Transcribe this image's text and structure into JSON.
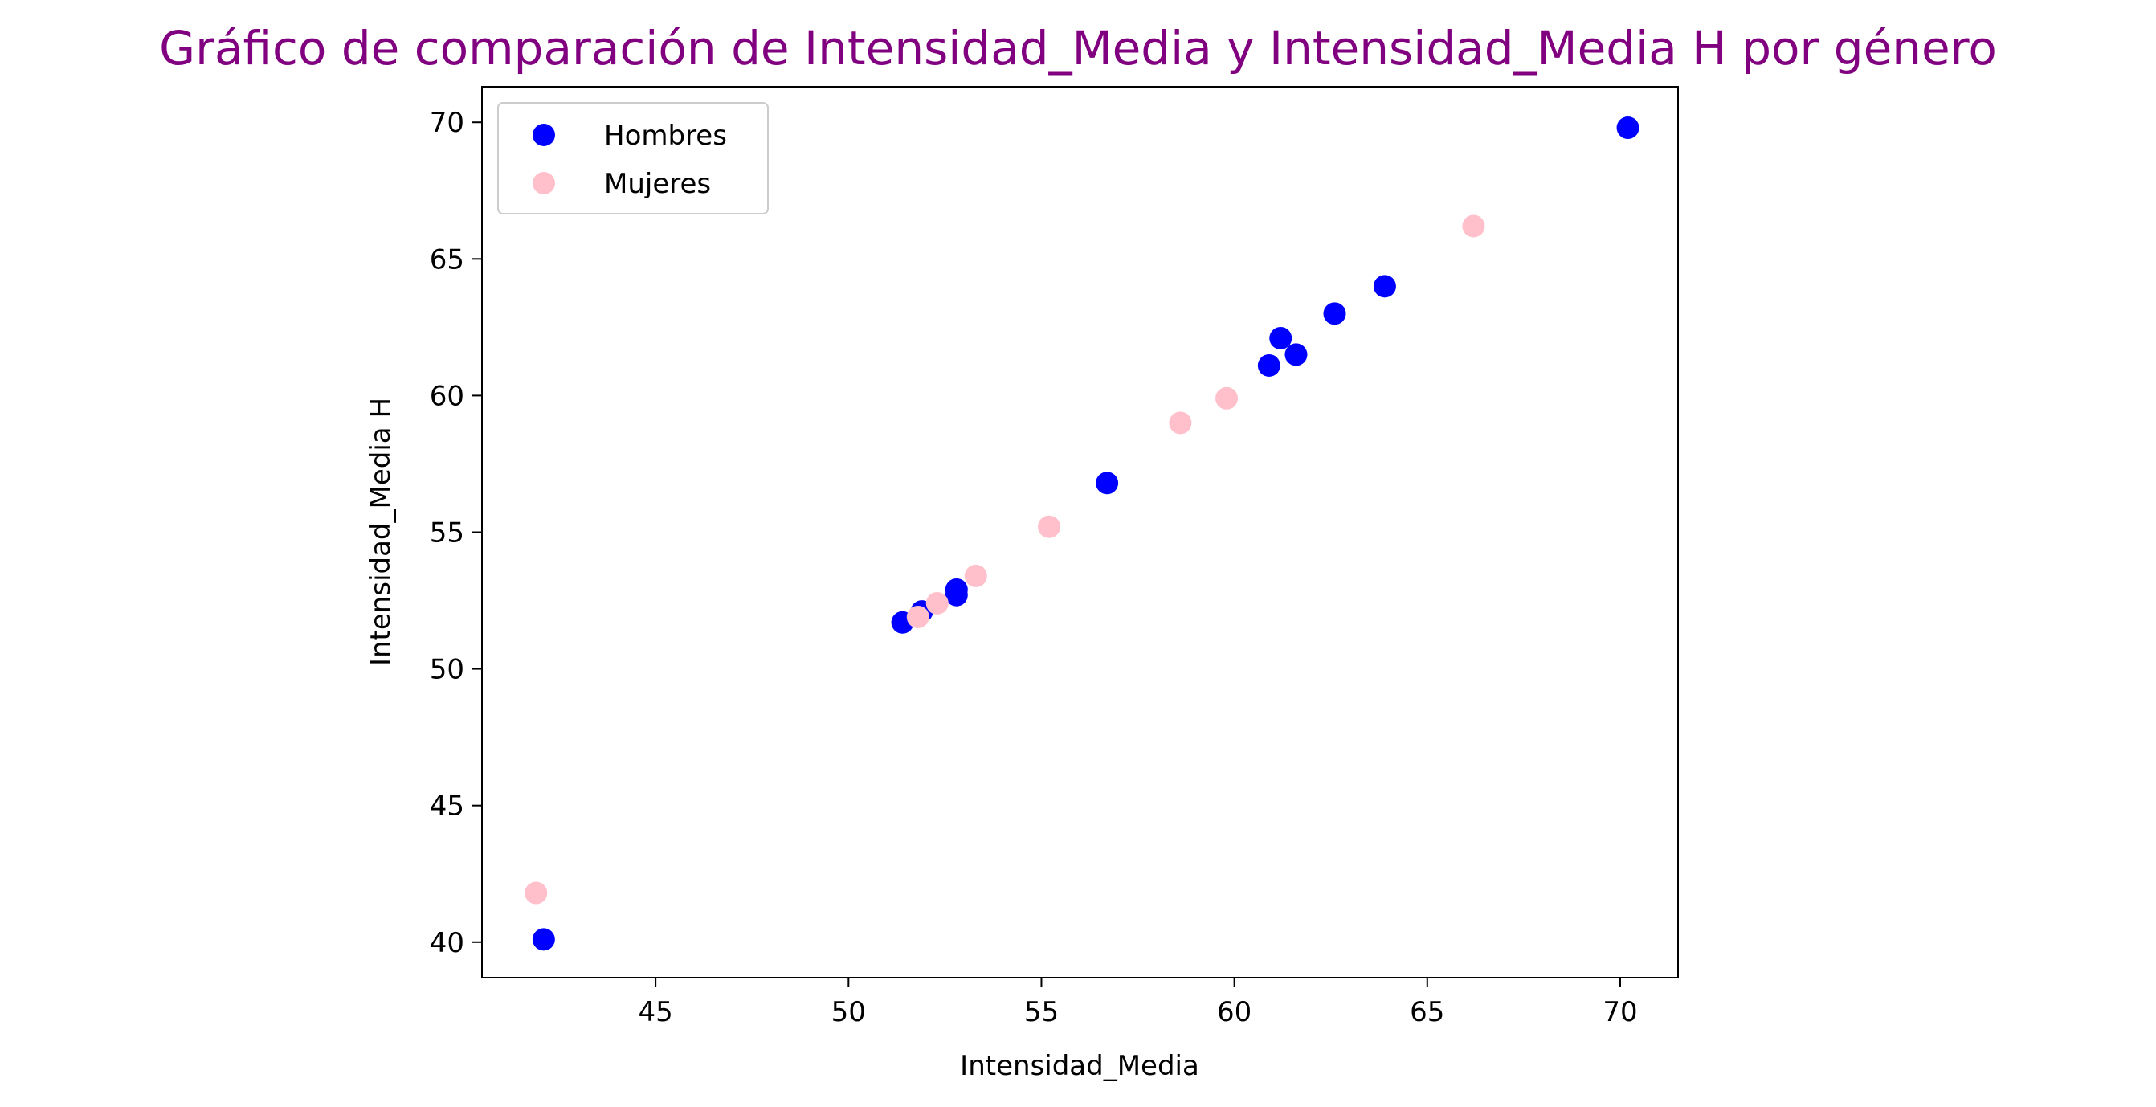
{
  "chart_data": {
    "type": "scatter",
    "title": "Gráfico de comparación de Intensidad_Media y Intensidad_Media H por género",
    "title_color": "#800080",
    "xlabel": "Intensidad_Media",
    "ylabel": "Intensidad_Media H",
    "xlim": [
      40.5,
      71.5
    ],
    "ylim": [
      38.7,
      71.3
    ],
    "xticks": [
      45,
      50,
      55,
      60,
      65,
      70
    ],
    "yticks": [
      40,
      45,
      50,
      55,
      60,
      65,
      70
    ],
    "grid": false,
    "legend_position": "upper-left",
    "series": [
      {
        "name": "Hombres",
        "color": "#0000ff",
        "points": [
          {
            "x": 42.1,
            "y": 40.1
          },
          {
            "x": 51.4,
            "y": 51.7
          },
          {
            "x": 51.9,
            "y": 52.1
          },
          {
            "x": 52.8,
            "y": 52.7
          },
          {
            "x": 52.8,
            "y": 52.9
          },
          {
            "x": 56.7,
            "y": 56.8
          },
          {
            "x": 60.9,
            "y": 61.1
          },
          {
            "x": 61.2,
            "y": 62.1
          },
          {
            "x": 61.6,
            "y": 61.5
          },
          {
            "x": 62.6,
            "y": 63.0
          },
          {
            "x": 63.9,
            "y": 64.0
          },
          {
            "x": 70.2,
            "y": 69.8
          }
        ]
      },
      {
        "name": "Mujeres",
        "color": "#ffc0cb",
        "points": [
          {
            "x": 41.9,
            "y": 41.8
          },
          {
            "x": 51.8,
            "y": 51.9
          },
          {
            "x": 52.3,
            "y": 52.4
          },
          {
            "x": 53.3,
            "y": 53.4
          },
          {
            "x": 55.2,
            "y": 55.2
          },
          {
            "x": 58.6,
            "y": 59.0
          },
          {
            "x": 59.8,
            "y": 59.9
          },
          {
            "x": 66.2,
            "y": 66.2
          }
        ]
      }
    ]
  }
}
